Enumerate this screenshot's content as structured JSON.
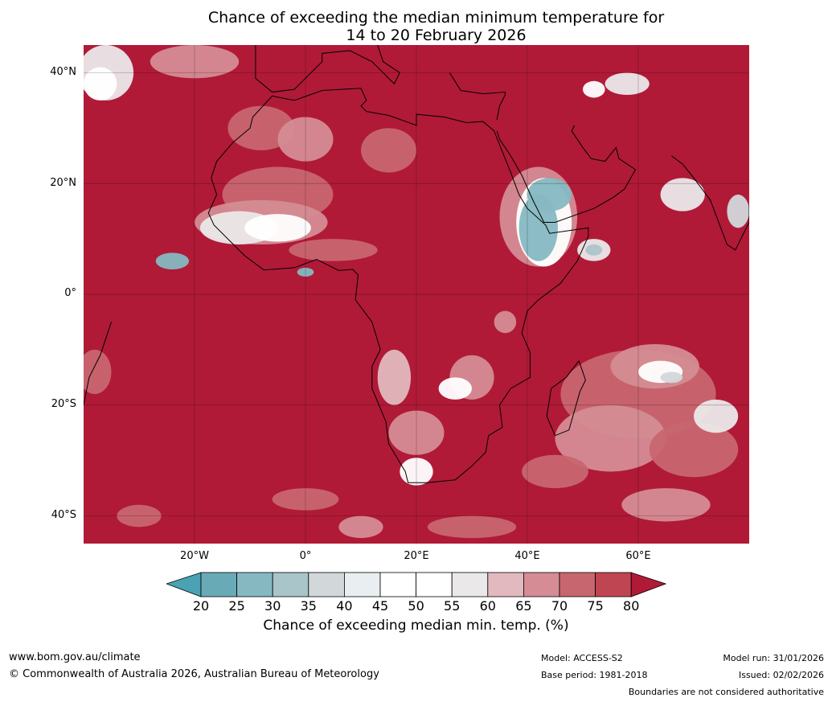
{
  "title": {
    "line1": "Chance of exceeding the median minimum temperature for",
    "line2": "14 to 20 February 2026"
  },
  "map": {
    "lon_range": [
      -40,
      80
    ],
    "lat_range": [
      -45,
      45
    ],
    "y_ticks": [
      "40°N",
      "20°N",
      "0°",
      "20°S",
      "40°S"
    ],
    "x_ticks": [
      "20°W",
      "0°",
      "20°E",
      "40°E",
      "60°E"
    ]
  },
  "colorbar": {
    "labels": [
      "20",
      "25",
      "30",
      "35",
      "40",
      "45",
      "50",
      "55",
      "60",
      "65",
      "70",
      "75",
      "80"
    ],
    "colors": [
      "#68abb7",
      "#86b8c2",
      "#aac5c9",
      "#d2d8da",
      "#e9eff1",
      "#ffffff",
      "#ffffff",
      "#ebe8e9",
      "#e2b9be",
      "#d58c94",
      "#c86670",
      "#c04552"
    ],
    "under_color": "#4aa2b3",
    "over_color": "#b01a37",
    "title": "Chance of exceeding median min. temp. (%)"
  },
  "footer": {
    "url": "www.bom.gov.au/climate",
    "copyright": "© Commonwealth of Australia 2026, Australian Bureau of Meteorology",
    "model": "Model: ACCESS-S2",
    "base_period": "Base period: 1981-2018",
    "model_run": "Model run: 31/01/2026",
    "issued": "Issued: 02/02/2026",
    "disclaimer": "Boundaries are not considered authoritative"
  }
}
